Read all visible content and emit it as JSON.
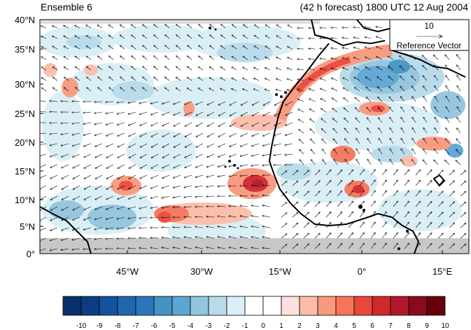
{
  "title_left": "Ensemble 6",
  "title_right": "(42 h forecast) 1800 UTC 12 Aug 2004",
  "reference_vector": {
    "magnitude": "10",
    "label": "Reference Vector"
  },
  "lat_labels": [
    "40°N",
    "35°N",
    "30°N",
    "25°N",
    "20°N",
    "15°N",
    "10°N",
    "5°N",
    "0°"
  ],
  "lon_labels": [
    "45°W",
    "30°W",
    "15°W",
    "0°",
    "15°E"
  ],
  "colorbar": {
    "labels": [
      "-10",
      "-9",
      "-8",
      "-7",
      "-6",
      "-5",
      "-4",
      "-3",
      "-2",
      "-1",
      "0",
      "1",
      "2",
      "3",
      "4",
      "5",
      "6",
      "7",
      "8",
      "9",
      "10"
    ],
    "colors": [
      "#08306b",
      "#0b3d80",
      "#14539b",
      "#2166ac",
      "#2b77bd",
      "#4393c3",
      "#5da5d2",
      "#92c5de",
      "#b7dbe9",
      "#d9eef6",
      "#ffffff",
      "#ffffff",
      "#fde0dd",
      "#fbbcaa",
      "#f9987c",
      "#f4755a",
      "#e8483a",
      "#d0282c",
      "#b2182b",
      "#8b0a1e",
      "#67000d"
    ]
  },
  "map": {
    "lat_range": [
      0,
      40
    ],
    "lon_range": [
      -57,
      18
    ],
    "land_mask_color": "#c8c8c8",
    "coastline_color": "#000000",
    "vector_color": "#000000"
  }
}
